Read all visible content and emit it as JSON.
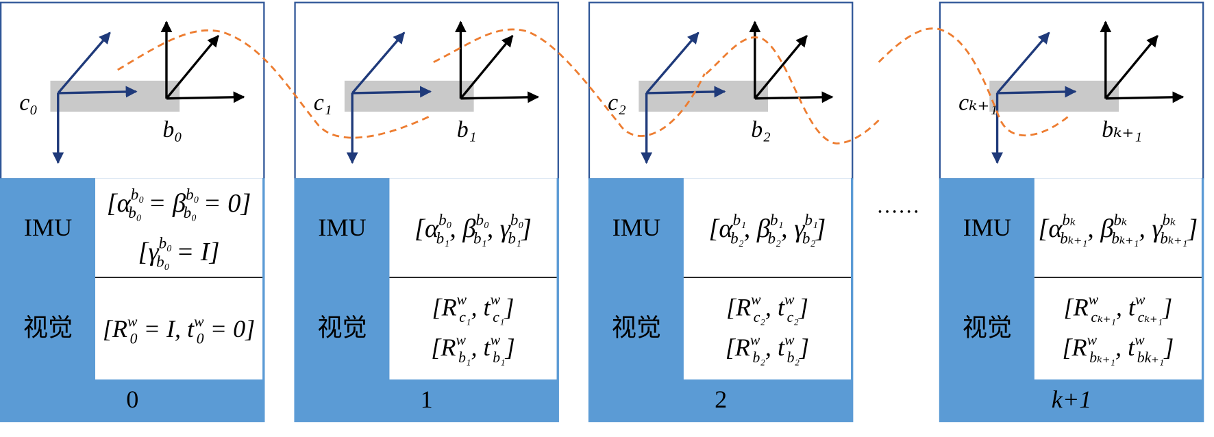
{
  "frames": [
    {
      "camera": "c₀",
      "body": "b₀",
      "imu_label": "IMU",
      "imu": [
        [
          {
            "t": "[α",
            "sup": "b₀",
            "sub": "b₀"
          },
          {
            "t": " = β",
            "sup": "b₀",
            "sub": "b₀"
          },
          {
            "t": " = 0]"
          }
        ],
        [
          {
            "t": "[γ",
            "sup": "b₀",
            "sub": "b₀"
          },
          {
            "t": " = I]"
          }
        ]
      ],
      "vision_label": "视觉",
      "vision": [
        [
          {
            "t": "[R",
            "sup": "w",
            "sub": "0"
          },
          {
            "t": " = I, t",
            "sup": "w",
            "sub": "0"
          },
          {
            "t": " = 0]"
          }
        ]
      ],
      "index": "0"
    },
    {
      "camera": "c₁",
      "body": "b₁",
      "imu_label": "IMU",
      "imu": [
        [
          {
            "t": "[α",
            "sup": "b₀",
            "sub": "b₁"
          },
          {
            "t": ", β",
            "sup": "b₀",
            "sub": "b₁"
          },
          {
            "t": ", γ",
            "sup": "b₀",
            "sub": "b₁"
          },
          {
            "t": "]"
          }
        ]
      ],
      "vision_label": "视觉",
      "vision": [
        [
          {
            "t": "[R",
            "sup": "w",
            "sub": "c₁"
          },
          {
            "t": ", t",
            "sup": "w",
            "sub": "c₁"
          },
          {
            "t": "]"
          }
        ],
        [
          {
            "t": "[R",
            "sup": "w",
            "sub": "b₁"
          },
          {
            "t": ", t",
            "sup": "w",
            "sub": "b₁"
          },
          {
            "t": "]"
          }
        ]
      ],
      "index": "1"
    },
    {
      "camera": "c₂",
      "body": "b₂",
      "imu_label": "IMU",
      "imu": [
        [
          {
            "t": "[α",
            "sup": "b₁",
            "sub": "b₂"
          },
          {
            "t": ", β",
            "sup": "b₁",
            "sub": "b₂"
          },
          {
            "t": ", γ",
            "sup": "b₁",
            "sub": "b₂"
          },
          {
            "t": "]"
          }
        ]
      ],
      "vision_label": "视觉",
      "vision": [
        [
          {
            "t": "[R",
            "sup": "w",
            "sub": "c₂"
          },
          {
            "t": ", t",
            "sup": "w",
            "sub": "c₂"
          },
          {
            "t": "]"
          }
        ],
        [
          {
            "t": "[R",
            "sup": "w",
            "sub": "b₂"
          },
          {
            "t": ", t",
            "sup": "w",
            "sub": "b₂"
          },
          {
            "t": "]"
          }
        ]
      ],
      "index": "2"
    },
    {
      "camera": "cₖ₊₁",
      "body": "bₖ₊₁",
      "imu_label": "IMU",
      "imu": [
        [
          {
            "t": "[α",
            "sup": "bₖ",
            "sub": "bₖ₊₁"
          },
          {
            "t": ", β",
            "sup": "bₖ",
            "sub": "bₖ₊₁"
          },
          {
            "t": ", γ",
            "sup": "bₖ",
            "sub": "bₖ₊₁"
          },
          {
            "t": "]"
          }
        ]
      ],
      "vision_label": "视觉",
      "vision": [
        [
          {
            "t": "[R",
            "sup": "w",
            "sub": "cₖ₊₁"
          },
          {
            "t": ", t",
            "sup": "w",
            "sub": "cₖ₊₁"
          },
          {
            "t": "]"
          }
        ],
        [
          {
            "t": "[R",
            "sup": "w",
            "sub": "bₖ₊₁"
          },
          {
            "t": ", t",
            "sup": "w",
            "sub": "bk₊₁"
          },
          {
            "t": "]"
          }
        ]
      ],
      "index": "k+1"
    }
  ],
  "ellipsis": "……"
}
